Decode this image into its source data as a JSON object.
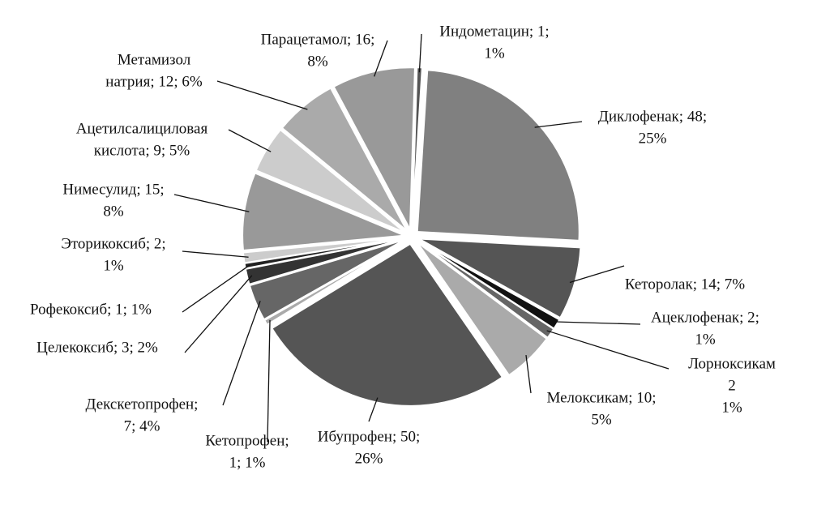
{
  "chart_data": {
    "type": "pie",
    "values": [
      1,
      48,
      14,
      2,
      2,
      10,
      50,
      1,
      7,
      3,
      1,
      2,
      15,
      9,
      12,
      16
    ],
    "value_labels": [
      [
        "Индометацин; 1;",
        "1%"
      ],
      [
        "Диклофенак; 48;",
        "25%"
      ],
      [
        "Кеторолак; 14; 7%"
      ],
      [
        "Ацеклофенак; 2;",
        "1%"
      ],
      [
        "Лорноксикам",
        "2",
        "1%"
      ],
      [
        "Мелоксикам; 10;",
        "5%"
      ],
      [
        "Ибупрофен; 50;",
        "26%"
      ],
      [
        "Кетопрофен;",
        "1; 1%"
      ],
      [
        "Декскетопрофен;",
        "7; 4%"
      ],
      [
        "Целекоксиб; 3; 2%"
      ],
      [
        "Рофекоксиб; 1; 1%"
      ],
      [
        "Эторикоксиб; 2;",
        "1%"
      ],
      [
        "Нимесулид; 15;",
        "8%"
      ],
      [
        "Ацетилсалициловая",
        "кислота; 9; 5%"
      ],
      [
        "Метамизол",
        "натрия; 12; 6%"
      ],
      [
        "Парацетамол; 16;",
        "8%"
      ]
    ],
    "colors": [
      "#555555",
      "#808080",
      "#555555",
      "#111111",
      "#666666",
      "#aaaaaa",
      "#555555",
      "#aaaaaa",
      "#666666",
      "#333333",
      "#222222",
      "#cccccc",
      "#999999",
      "#cccccc",
      "#aaaaaa",
      "#999999"
    ]
  }
}
